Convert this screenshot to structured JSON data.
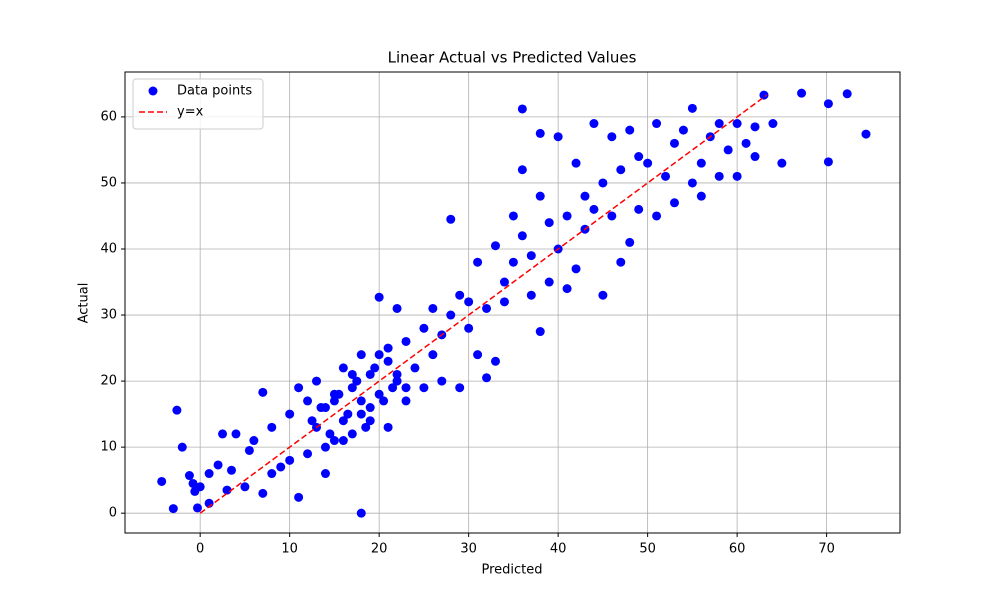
{
  "chart_data": {
    "type": "scatter",
    "title": "Linear Actual vs Predicted Values",
    "x_label": "Predicted",
    "y_label": "Actual",
    "xlim": [
      -8.4,
      78.2
    ],
    "ylim": [
      -3.0,
      66.8
    ],
    "xticks": [
      0,
      10,
      20,
      30,
      40,
      50,
      60,
      70
    ],
    "yticks": [
      0,
      10,
      20,
      30,
      40,
      50,
      60
    ],
    "grid": true,
    "legend": "upper left",
    "series": [
      {
        "name": "Data points",
        "type": "scatter",
        "color": "#0000ff",
        "x": [
          -4.3,
          -3,
          -2.6,
          -2,
          -1.2,
          -0.8,
          -0.6,
          -0.3,
          0,
          1,
          1,
          2,
          2.5,
          3,
          3.5,
          4,
          5,
          5.5,
          6,
          7,
          7,
          8,
          8,
          9,
          10,
          10,
          11,
          11,
          12,
          12,
          13,
          13,
          14,
          14,
          15,
          15,
          16,
          16,
          17,
          17,
          18,
          18,
          18,
          19,
          19,
          20,
          20,
          21,
          21,
          22,
          22,
          23,
          23,
          24,
          25,
          25,
          26,
          26,
          27,
          27,
          28,
          28,
          29,
          29,
          30,
          30,
          31,
          31,
          32,
          32,
          33,
          33,
          34,
          34,
          35,
          35,
          36,
          36,
          36,
          37,
          37,
          38,
          38,
          38,
          39,
          39,
          40,
          40,
          41,
          41,
          42,
          42,
          43,
          43,
          44,
          44,
          45,
          45,
          46,
          46,
          47,
          47,
          48,
          48,
          49,
          49,
          50,
          51,
          51,
          52,
          53,
          53,
          54,
          55,
          55,
          56,
          56,
          57,
          58,
          58,
          59,
          60,
          60,
          61,
          62,
          62,
          63,
          64,
          65,
          67.2,
          70.2,
          70.2,
          72.3,
          74.4,
          12.5,
          13.5,
          14.5,
          15.5,
          16.5,
          17.5,
          18.5,
          19.5,
          20.5,
          21.5,
          14,
          16,
          18,
          20,
          22,
          15,
          17,
          19,
          21,
          23
        ],
        "values": [
          4.8,
          0.7,
          15.6,
          10,
          5.7,
          4.5,
          3.3,
          0.8,
          4,
          1.5,
          6,
          7.3,
          12,
          3.5,
          6.5,
          12,
          4,
          9.5,
          11,
          18.3,
          3,
          6,
          13,
          7,
          15,
          8,
          19,
          2.4,
          9,
          17,
          13,
          20,
          6,
          16,
          11,
          18,
          14,
          22,
          12,
          19,
          17,
          0,
          24,
          14,
          21,
          32.7,
          18,
          23,
          13,
          20,
          31,
          26,
          17,
          22,
          28,
          19,
          31,
          24,
          27,
          20,
          30,
          44.5,
          33,
          19,
          28,
          32,
          38,
          24,
          31,
          20.5,
          40.5,
          23,
          35,
          32,
          38,
          45,
          42,
          52,
          61.2,
          39,
          33,
          27.5,
          48,
          57.5,
          44,
          35,
          40,
          57,
          45,
          34,
          53,
          37,
          48,
          43,
          59,
          46,
          50,
          33,
          45,
          57,
          52,
          38,
          41,
          58,
          46,
          54,
          53,
          59,
          45,
          51,
          56,
          47,
          58,
          61.3,
          50,
          53,
          48,
          57,
          51,
          59,
          55,
          59,
          51,
          56,
          58.5,
          54,
          63.3,
          59,
          53,
          63.6,
          53.2,
          62,
          63.5,
          57.4,
          14,
          16,
          12,
          18,
          15,
          20,
          13,
          22,
          17,
          19,
          10,
          11,
          15,
          24,
          21,
          17,
          21,
          16,
          25,
          19
        ]
      },
      {
        "name": "y=x",
        "type": "line",
        "color": "#ff0000",
        "dashed": true,
        "x": [
          0,
          63.3
        ],
        "values": [
          0,
          63.3
        ]
      }
    ]
  }
}
